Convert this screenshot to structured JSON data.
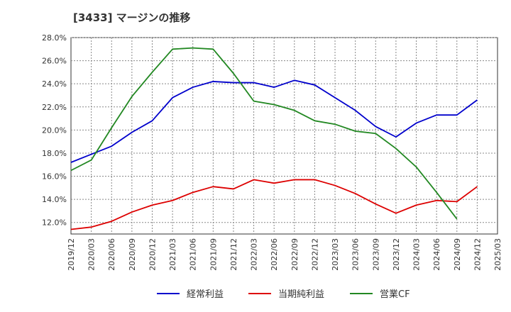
{
  "title": "[3433]  マージンの推移",
  "chart_data": {
    "type": "line",
    "title": "[3433]  マージンの推移",
    "xlabel": "",
    "ylabel": "",
    "x": [
      "2019/12",
      "2020/03",
      "2020/06",
      "2020/09",
      "2020/12",
      "2021/03",
      "2021/06",
      "2021/09",
      "2021/12",
      "2022/03",
      "2022/06",
      "2022/09",
      "2022/12",
      "2023/03",
      "2023/06",
      "2023/09",
      "2023/12",
      "2024/03",
      "2024/06",
      "2024/09",
      "2024/12",
      "2025/03"
    ],
    "ylim": [
      11.0,
      28.0
    ],
    "yticks": [
      12.0,
      14.0,
      16.0,
      18.0,
      20.0,
      22.0,
      24.0,
      26.0,
      28.0
    ],
    "ytick_labels": [
      "12.0%",
      "14.0%",
      "16.0%",
      "18.0%",
      "20.0%",
      "22.0%",
      "24.0%",
      "26.0%",
      "28.0%"
    ],
    "grid": true,
    "legend_position": "bottom",
    "series": [
      {
        "name": "経常利益",
        "color": "#0000cc",
        "values": [
          17.2,
          17.9,
          18.6,
          19.8,
          20.8,
          22.8,
          23.7,
          24.2,
          24.1,
          24.1,
          23.7,
          24.3,
          23.9,
          22.8,
          21.7,
          20.3,
          19.4,
          20.6,
          21.3,
          21.3,
          22.6,
          null
        ]
      },
      {
        "name": "当期純利益",
        "color": "#dd0000",
        "values": [
          11.4,
          11.6,
          12.1,
          12.9,
          13.5,
          13.9,
          14.6,
          15.1,
          14.9,
          15.7,
          15.4,
          15.7,
          15.7,
          15.2,
          14.5,
          13.6,
          12.8,
          13.5,
          13.9,
          13.8,
          15.1,
          null
        ]
      },
      {
        "name": "営業CF",
        "color": "#228822",
        "values": [
          16.5,
          17.4,
          20.2,
          22.9,
          25.0,
          27.0,
          27.1,
          27.0,
          24.9,
          22.5,
          22.2,
          21.7,
          20.8,
          20.5,
          19.9,
          19.7,
          18.4,
          16.8,
          14.6,
          12.3,
          null,
          null
        ]
      }
    ]
  }
}
